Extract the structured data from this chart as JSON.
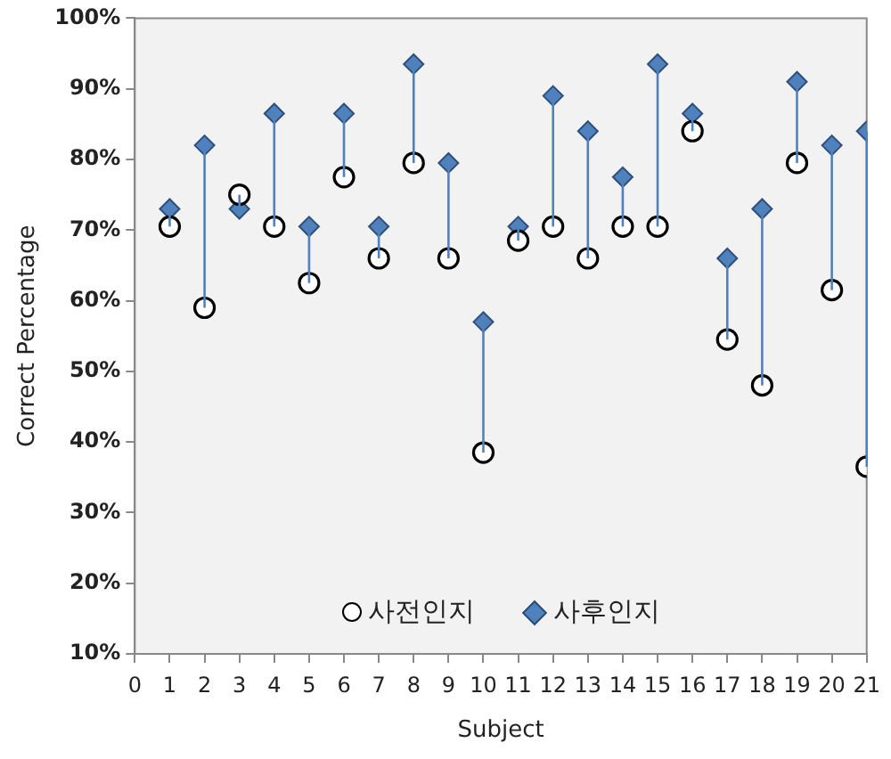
{
  "chart_data": {
    "type": "scatter",
    "xlabel": "Subject",
    "ylabel": "Correct Percentage",
    "x": [
      1,
      2,
      3,
      4,
      5,
      6,
      7,
      8,
      9,
      10,
      11,
      12,
      13,
      14,
      15,
      16,
      17,
      18,
      19,
      20,
      21
    ],
    "series": [
      {
        "name": "사전인지",
        "color": "#000000",
        "marker": "circle",
        "values": [
          70.5,
          59,
          75,
          70.5,
          62.5,
          77.5,
          66,
          79.5,
          66,
          38.5,
          68.5,
          70.5,
          66,
          70.5,
          70.5,
          84,
          54.5,
          48,
          79.5,
          61.5,
          36.5
        ]
      },
      {
        "name": "사후인지",
        "color": "#4f81bd",
        "marker": "diamond",
        "values": [
          73,
          82,
          73,
          86.5,
          70.5,
          86.5,
          70.5,
          93.5,
          79.5,
          57,
          70.5,
          89,
          84,
          77.5,
          93.5,
          86.5,
          66,
          73,
          91,
          82,
          84
        ],
        "errors": [
          [
            70.5,
            73
          ],
          [
            59,
            82
          ],
          [
            73,
            75
          ],
          [
            70.5,
            86.5
          ],
          [
            62.5,
            70.5
          ],
          [
            77.5,
            86.5
          ],
          [
            66,
            70.5
          ],
          [
            79.5,
            93.5
          ],
          [
            66,
            79.5
          ],
          [
            38.5,
            57
          ],
          [
            68.5,
            70.5
          ],
          [
            70.5,
            89
          ],
          [
            66,
            84
          ],
          [
            70.5,
            77.5
          ],
          [
            70.5,
            93.5
          ],
          [
            84,
            86.5
          ],
          [
            54.5,
            66
          ],
          [
            48,
            73
          ],
          [
            79.5,
            91
          ],
          [
            61.5,
            82
          ],
          [
            36.5,
            84
          ]
        ]
      }
    ],
    "xlim": [
      0,
      21
    ],
    "xticks": [
      0,
      1,
      2,
      3,
      4,
      5,
      6,
      7,
      8,
      9,
      10,
      11,
      12,
      13,
      14,
      15,
      16,
      17,
      18,
      19,
      20,
      21
    ],
    "ylim": [
      10,
      100
    ],
    "yticks": [
      {
        "value": 10,
        "label": "10%"
      },
      {
        "value": 20,
        "label": "20%"
      },
      {
        "value": 30,
        "label": "30%"
      },
      {
        "value": 40,
        "label": "40%"
      },
      {
        "value": 50,
        "label": "50%"
      },
      {
        "value": 60,
        "label": "60%"
      },
      {
        "value": 70,
        "label": "70%"
      },
      {
        "value": 80,
        "label": "80%"
      },
      {
        "value": 90,
        "label": "90%"
      },
      {
        "value": 100,
        "label": "100%"
      }
    ],
    "grid": false,
    "legend": "bottom"
  }
}
